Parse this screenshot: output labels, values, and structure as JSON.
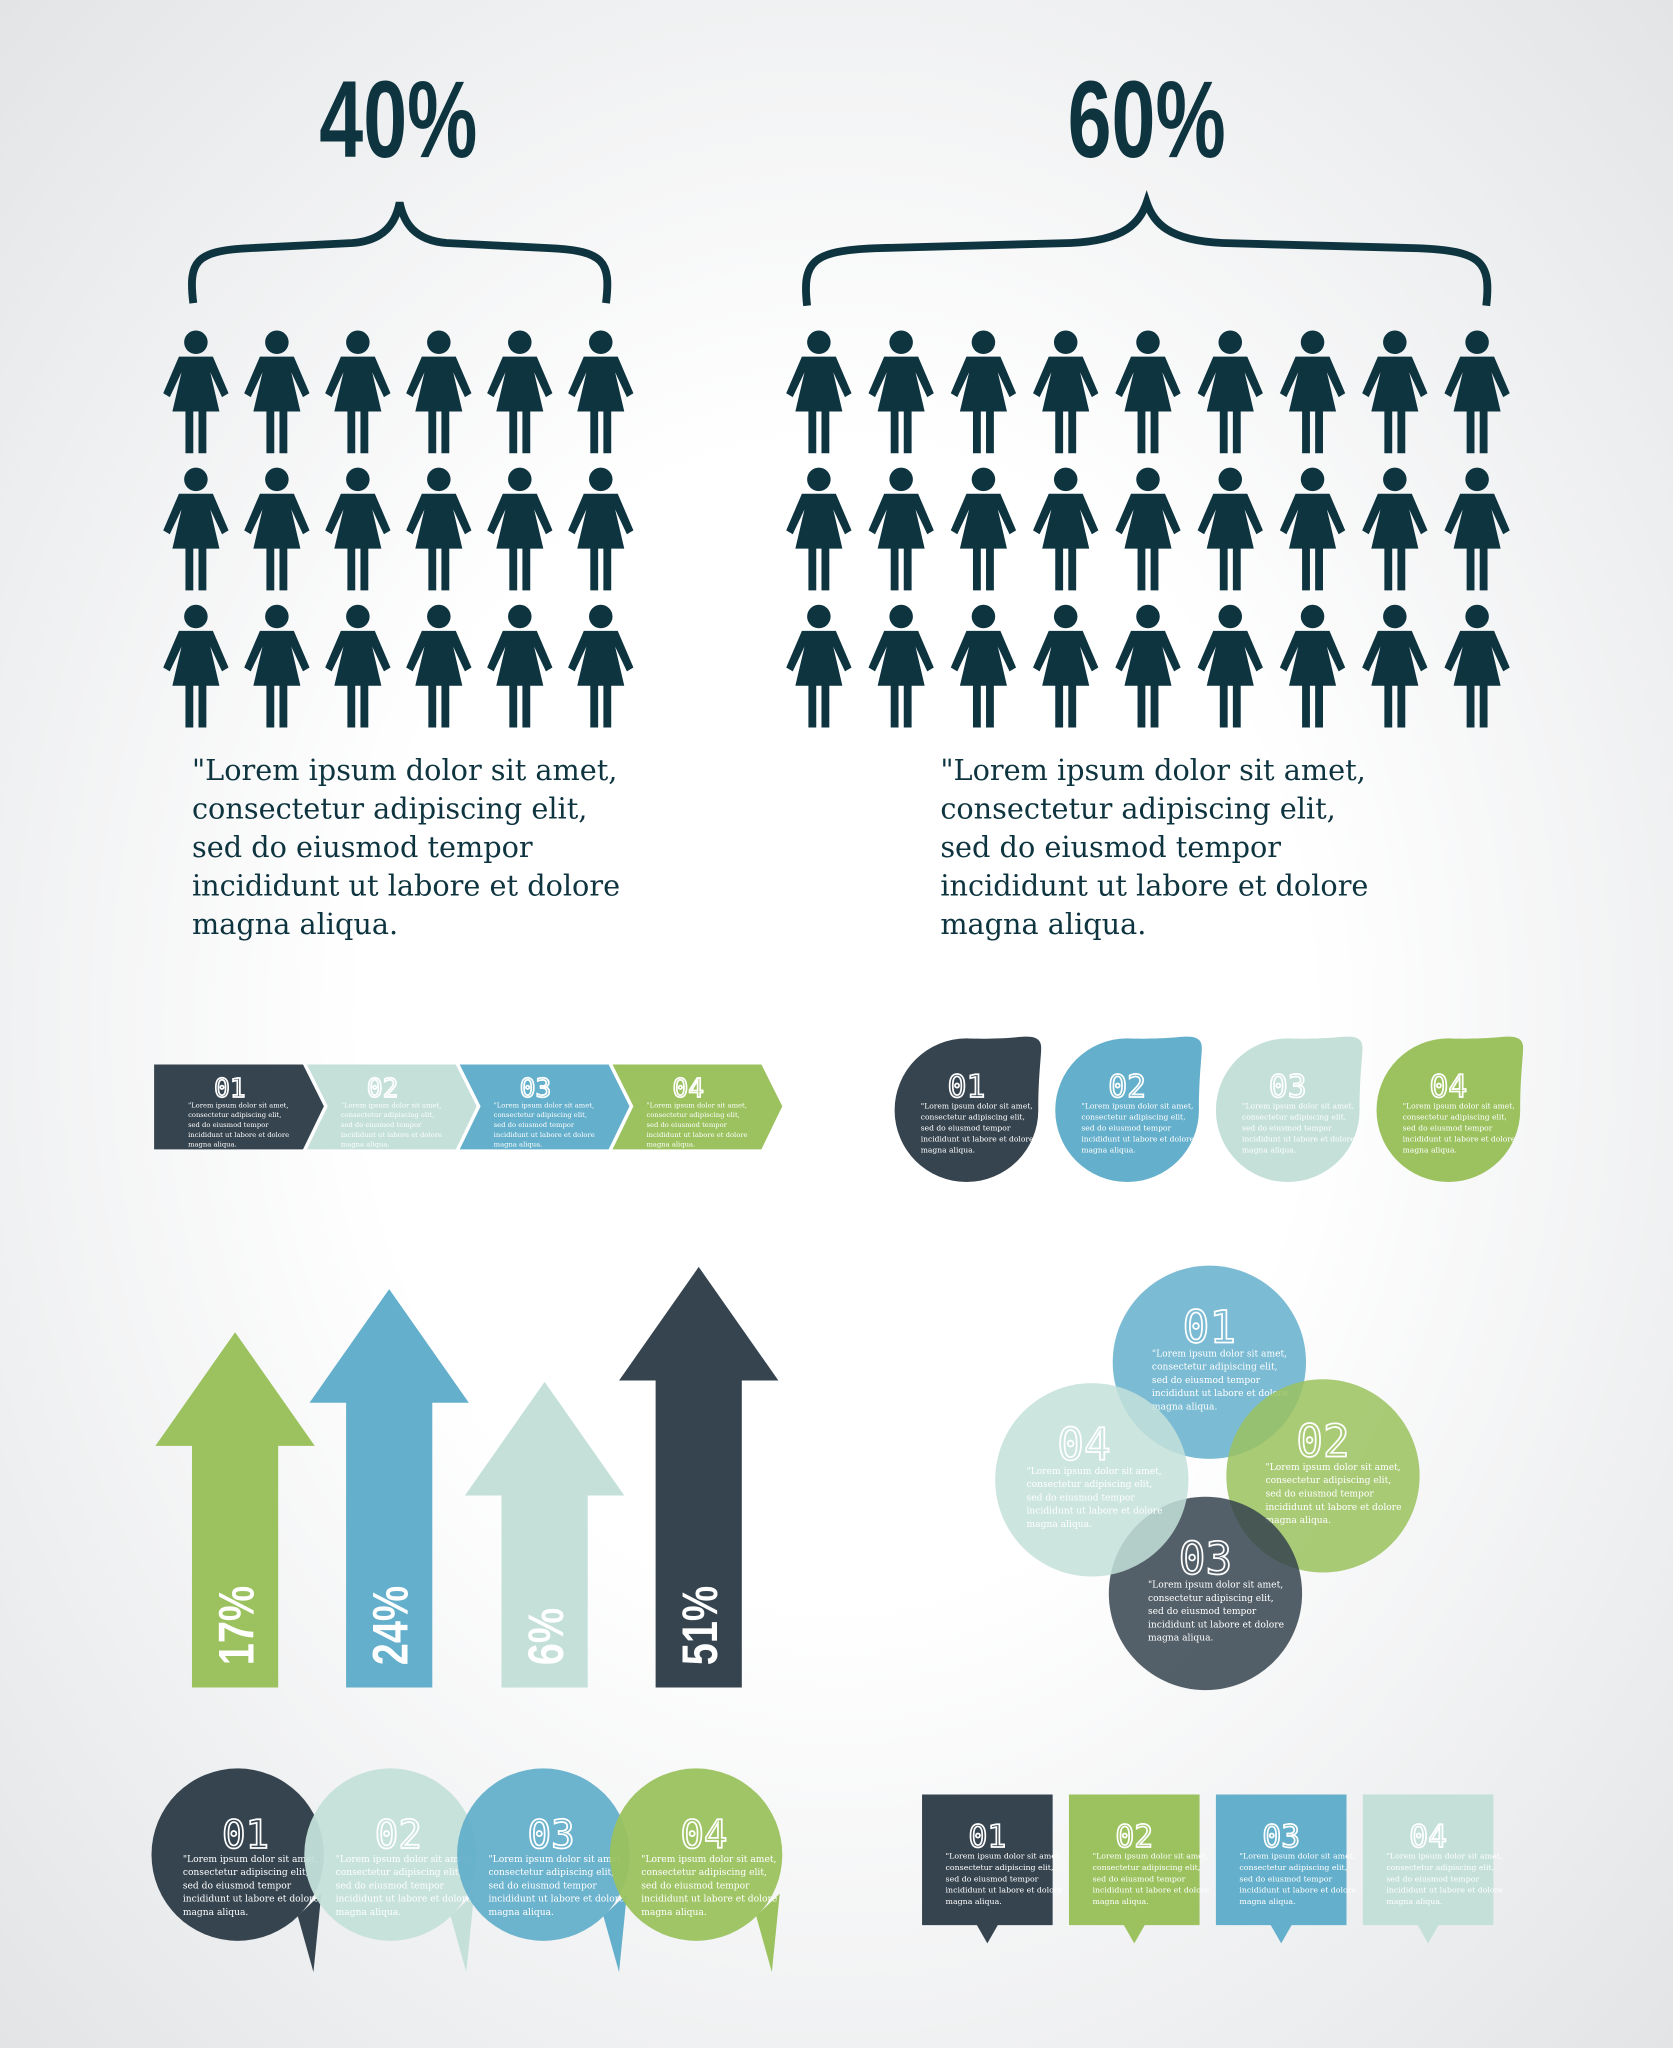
{
  "colors": {
    "dark": "#36444f",
    "blue": "#64afcb",
    "pale": "#c4e0d9",
    "green": "#9bc25e",
    "ink": "#0e3440"
  },
  "comparison": [
    {
      "percent": "40%",
      "figure_count": 18,
      "icon": "woman-icon",
      "text": [
        "\"Lorem ipsum dolor sit amet,",
        "consectetur adipiscing elit,",
        "sed do eiusmod tempor",
        "incididunt ut labore et dolore",
        "magna aliqua."
      ]
    },
    {
      "percent": "60%",
      "figure_count": 27,
      "icon": "woman-icon",
      "text": [
        "\"Lorem ipsum dolor sit amet,",
        "consectetur adipiscing elit,",
        "sed do eiusmod tempor",
        "incididunt ut labore et dolore",
        "magna aliqua."
      ]
    }
  ],
  "item_text": [
    "\"Lorem ipsum dolor sit amet,",
    "consectetur adipiscing elit,",
    "sed do eiusmod tempor",
    "incididunt ut labore et dolore",
    "magna aliqua."
  ],
  "steps": [
    "01",
    "02",
    "03",
    "04"
  ],
  "arrows": [
    {
      "label": "17%",
      "value": 17,
      "color": "green"
    },
    {
      "label": "24%",
      "value": 24,
      "color": "blue"
    },
    {
      "label": "6%",
      "value": 6,
      "color": "pale"
    },
    {
      "label": "51%",
      "value": 51,
      "color": "dark"
    }
  ]
}
